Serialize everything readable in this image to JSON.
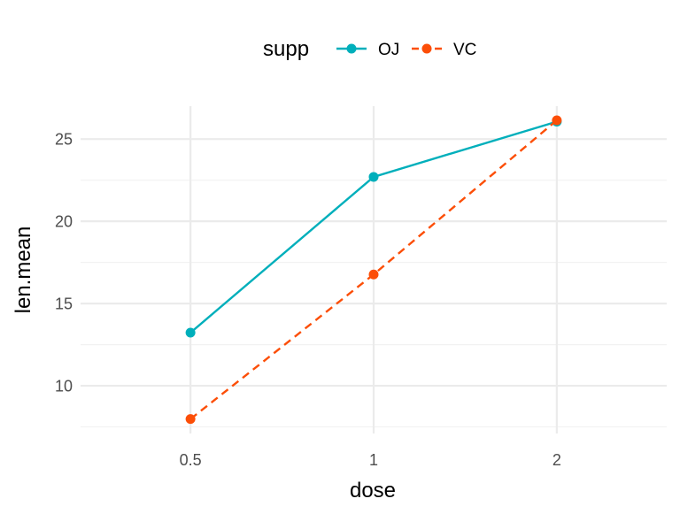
{
  "chart_data": {
    "type": "line",
    "xlabel": "dose",
    "ylabel": "len.mean",
    "x": [
      "0.5",
      "1",
      "2"
    ],
    "x_scale": "discrete",
    "ylim": [
      7.1,
      27
    ],
    "y_ticks": [
      10,
      15,
      20,
      25
    ],
    "grid": true,
    "legend": {
      "title": "supp",
      "position": "top"
    },
    "series": [
      {
        "name": "OJ",
        "values": [
          13.23,
          22.7,
          26.06
        ],
        "color": "#00AFBB",
        "linetype": "solid"
      },
      {
        "name": "VC",
        "values": [
          7.98,
          16.77,
          26.14
        ],
        "color": "#FC4E07",
        "linetype": "dashed"
      }
    ]
  }
}
